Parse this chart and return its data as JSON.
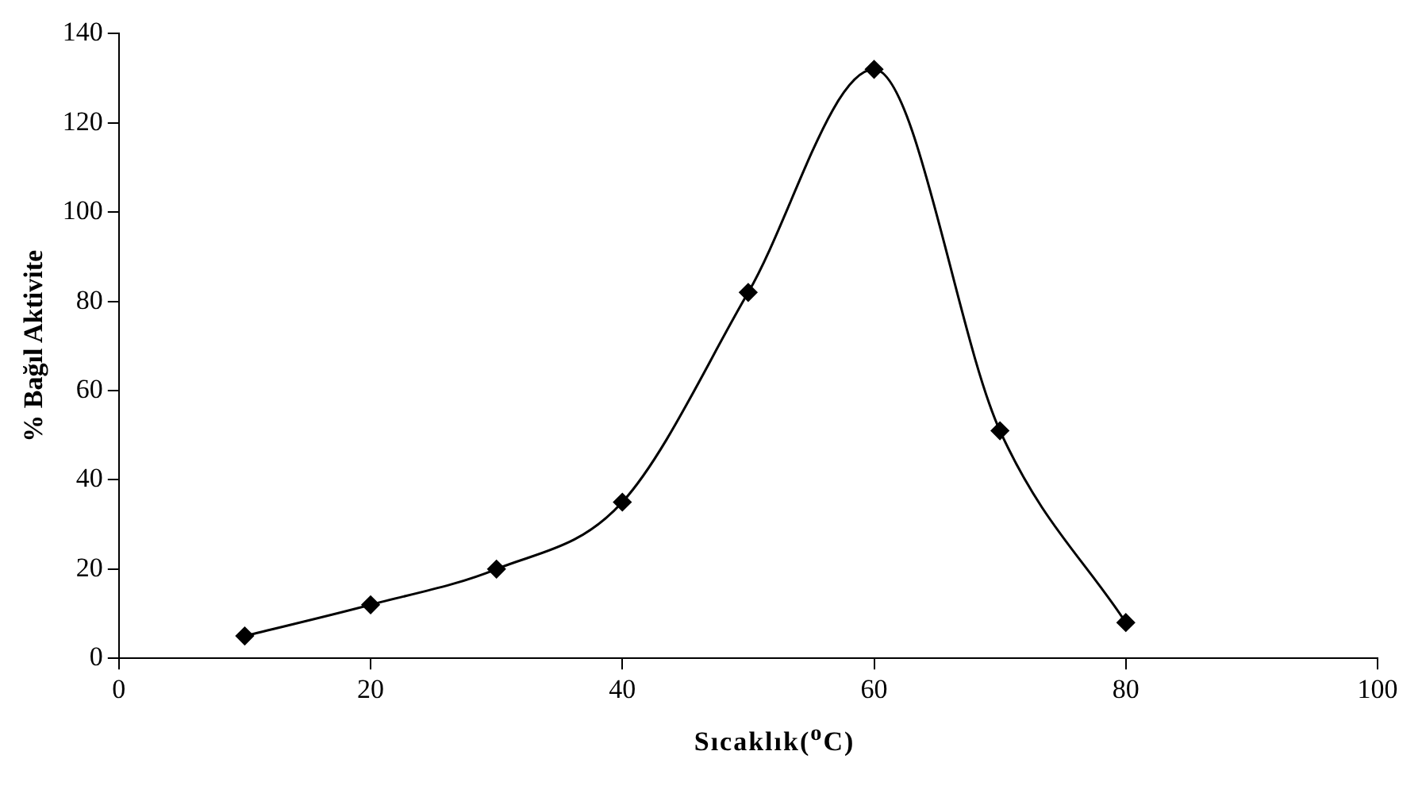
{
  "chart_data": {
    "type": "line",
    "xlabel": "Sıcaklık($^{o}$C)",
    "ylabel": "% Bağıl Aktivite",
    "x": [
      10,
      20,
      30,
      40,
      50,
      60,
      70,
      80
    ],
    "series": [
      {
        "color": "#000000",
        "values": [
          5,
          12,
          20,
          35,
          82,
          132,
          51,
          8
        ]
      }
    ],
    "xlim": [
      0,
      100
    ],
    "xticks": [
      0,
      20,
      40,
      60,
      80,
      100
    ],
    "ylim": [
      0,
      140
    ],
    "yticks": [
      0,
      20,
      40,
      60,
      80,
      100,
      120,
      140
    ],
    "grid": false,
    "legend": false,
    "marker": "diamond",
    "line_style": "solid"
  }
}
